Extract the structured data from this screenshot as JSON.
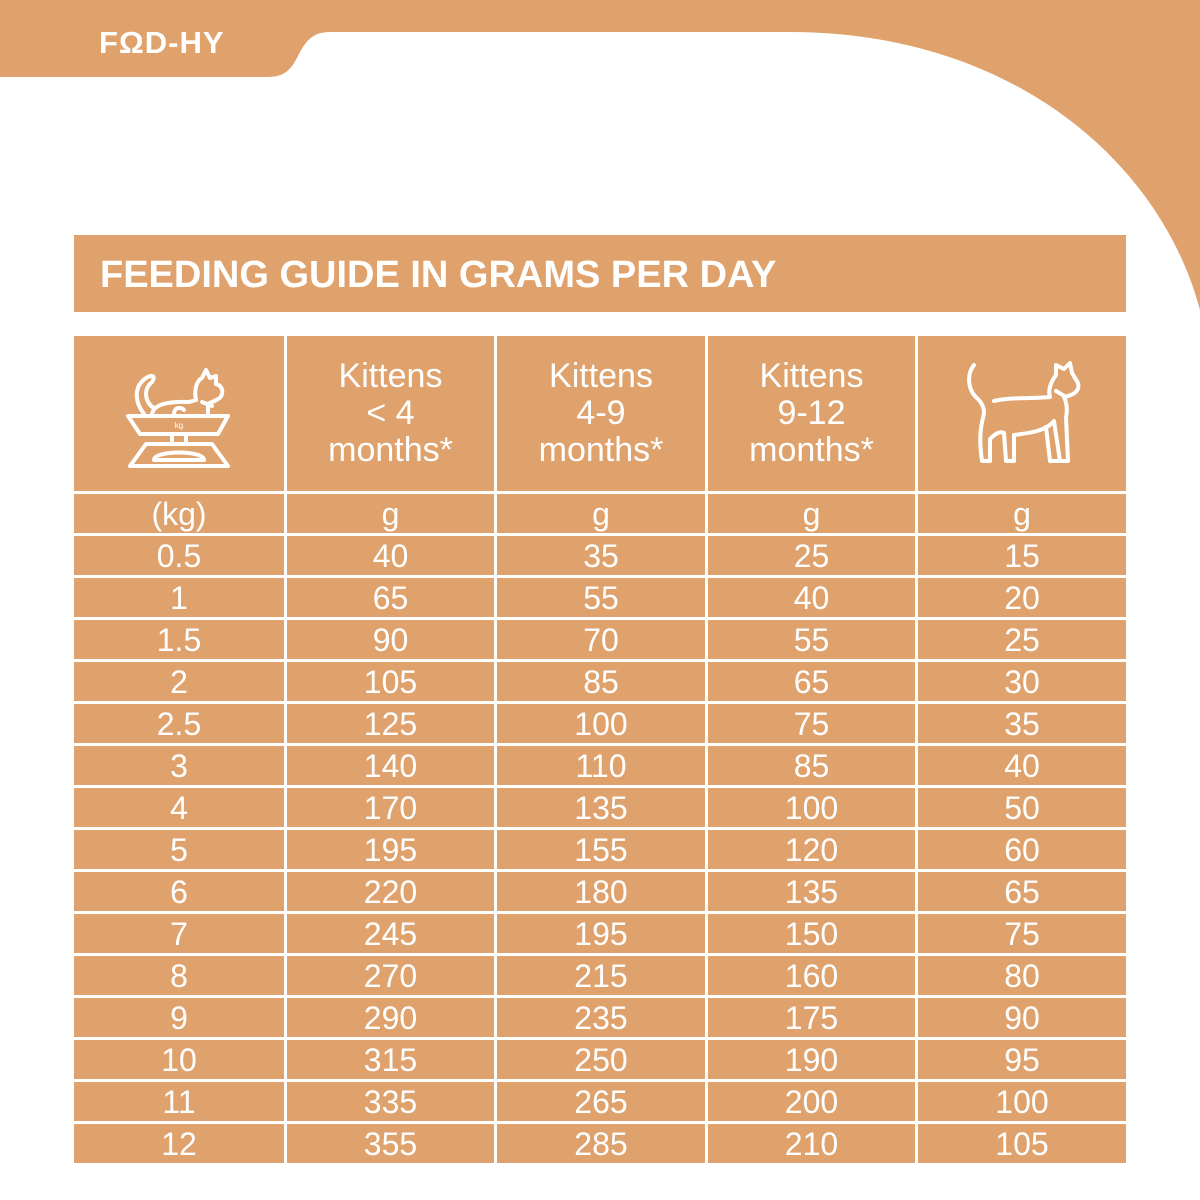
{
  "brand": {
    "logo": "FΩD-HY",
    "color": "#DFA26C"
  },
  "title": "FEEDING GUIDE IN GRAMS PER DAY",
  "table": {
    "headers": [
      {
        "icon": "cat-on-scale-icon",
        "icon_label": "kg"
      },
      {
        "lines": [
          "Kittens",
          "< 4",
          "months*"
        ]
      },
      {
        "lines": [
          "Kittens",
          "4-9",
          "months*"
        ]
      },
      {
        "lines": [
          "Kittens",
          "9-12",
          "months*"
        ]
      },
      {
        "icon": "adult-cat-icon"
      }
    ],
    "units": [
      "(kg)",
      "g",
      "g",
      "g",
      "g"
    ],
    "rows": [
      [
        "0.5",
        "40",
        "35",
        "25",
        "15"
      ],
      [
        "1",
        "65",
        "55",
        "40",
        "20"
      ],
      [
        "1.5",
        "90",
        "70",
        "55",
        "25"
      ],
      [
        "2",
        "105",
        "85",
        "65",
        "30"
      ],
      [
        "2.5",
        "125",
        "100",
        "75",
        "35"
      ],
      [
        "3",
        "140",
        "110",
        "85",
        "40"
      ],
      [
        "4",
        "170",
        "135",
        "100",
        "50"
      ],
      [
        "5",
        "195",
        "155",
        "120",
        "60"
      ],
      [
        "6",
        "220",
        "180",
        "135",
        "65"
      ],
      [
        "7",
        "245",
        "195",
        "150",
        "75"
      ],
      [
        "8",
        "270",
        "215",
        "160",
        "80"
      ],
      [
        "9",
        "290",
        "235",
        "175",
        "90"
      ],
      [
        "10",
        "315",
        "250",
        "190",
        "95"
      ],
      [
        "11",
        "335",
        "265",
        "200",
        "100"
      ],
      [
        "12",
        "355",
        "285",
        "210",
        "105"
      ]
    ]
  }
}
